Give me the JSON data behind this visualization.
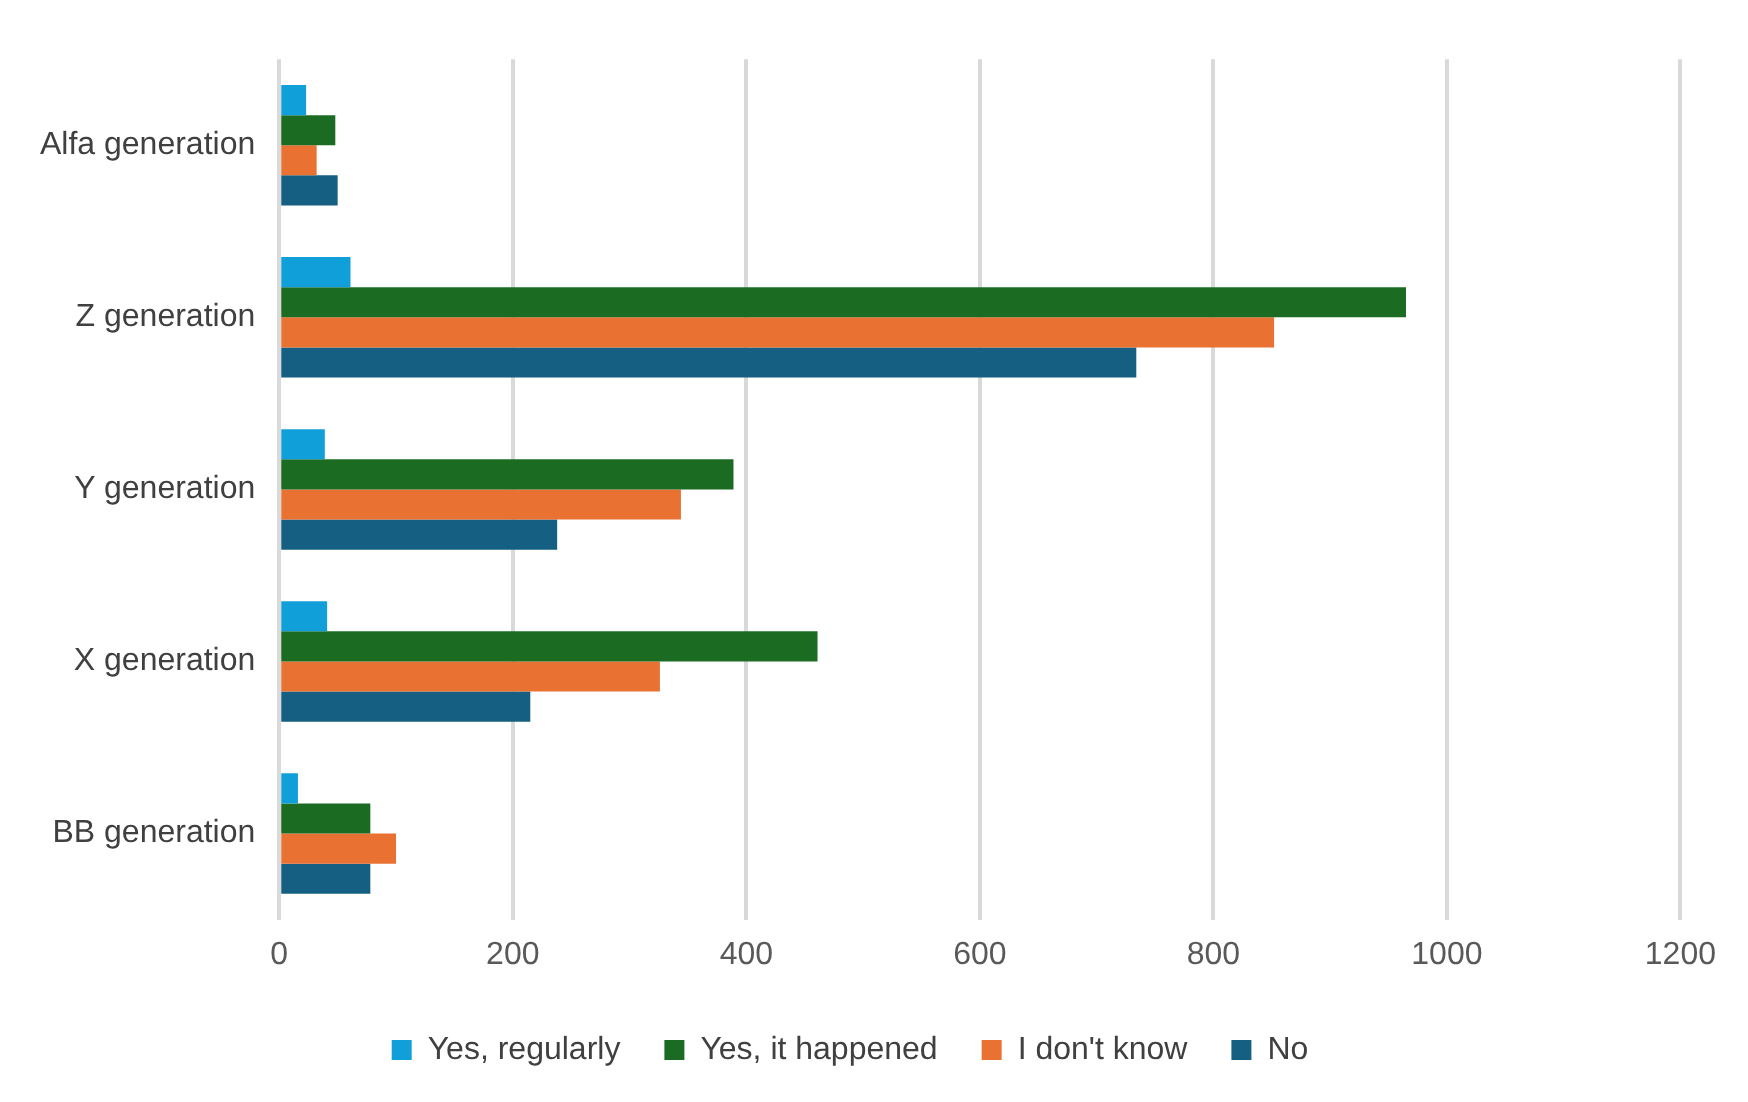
{
  "chart_data": {
    "type": "bar",
    "orientation": "horizontal",
    "categories": [
      "Alfa generation",
      "Z generation",
      "Y generation",
      "X generation",
      "BB generation"
    ],
    "series": [
      {
        "name": "Yes, regularly",
        "color": "#119fd9",
        "values": [
          23,
          61,
          39,
          41,
          16
        ]
      },
      {
        "name": "Yes, it happened",
        "color": "#1b6b23",
        "values": [
          48,
          965,
          389,
          461,
          78
        ]
      },
      {
        "name": "I don't know",
        "color": "#e97132",
        "values": [
          32,
          852,
          344,
          326,
          100
        ]
      },
      {
        "name": "No",
        "color": "#155f82",
        "values": [
          50,
          734,
          238,
          215,
          78
        ]
      }
    ],
    "xlim": [
      0,
      1200
    ],
    "xticks": [
      0,
      200,
      400,
      600,
      800,
      1000,
      1200
    ],
    "grid": "x",
    "legend": "bottom"
  }
}
